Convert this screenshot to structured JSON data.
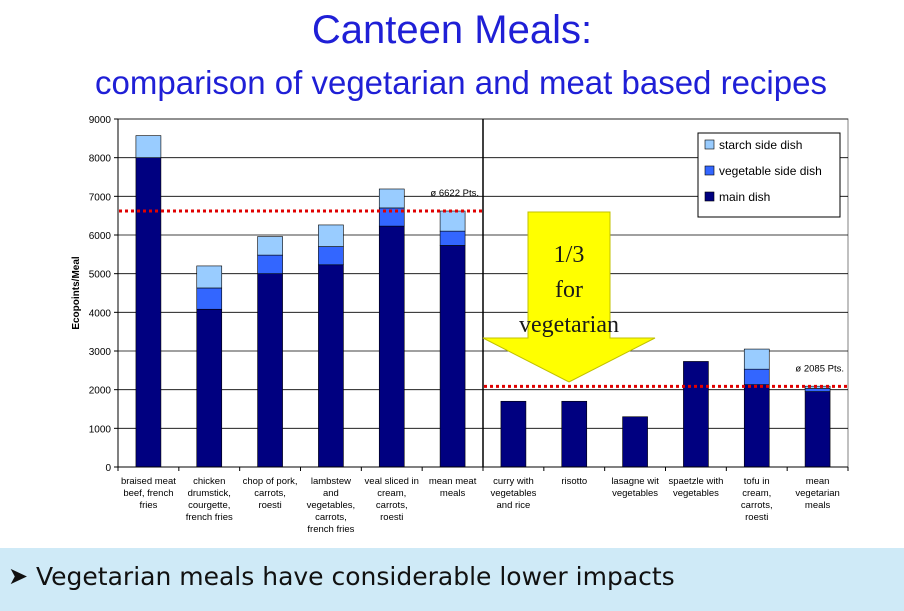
{
  "title_line1": "Canteen Meals:",
  "title_line2": "comparison of vegetarian and meat based recipes",
  "footer": {
    "bullet_icon": "arrow-bullet-icon",
    "text": "Vegetarian meals have considerable lower impacts"
  },
  "chart_data": {
    "type": "bar",
    "stacked": true,
    "ylabel": "Ecopoints/Meal",
    "ylim": [
      0,
      9000
    ],
    "yticks": [
      0,
      1000,
      2000,
      3000,
      4000,
      5000,
      6000,
      7000,
      8000,
      9000
    ],
    "grid": true,
    "legend_position": "top-right",
    "categories": [
      [
        "braised meat",
        "beef, french",
        "fries"
      ],
      [
        "chicken",
        "drumstick,",
        "courgette,",
        "french fries"
      ],
      [
        "chop of pork,",
        "carrots,",
        "roesti"
      ],
      [
        "lambstew",
        "and",
        "vegetables,",
        "carrots,",
        "french fries"
      ],
      [
        "veal sliced in",
        "cream,",
        "carrots,",
        "roesti"
      ],
      [
        "mean meat",
        "meals"
      ],
      [
        "curry with",
        "vegetables",
        "and rice"
      ],
      [
        "risotto"
      ],
      [
        "lasagne wit",
        "vegetables"
      ],
      [
        "spaetzle with",
        "vegetables"
      ],
      [
        "tofu in",
        "cream,",
        "carrots,",
        "roesti"
      ],
      [
        "mean",
        "vegetarian",
        "meals"
      ]
    ],
    "series": [
      {
        "name": "main dish",
        "color": "#000080",
        "values": [
          8000,
          4080,
          5000,
          5230,
          6230,
          5730,
          1700,
          1700,
          1300,
          2730,
          2130,
          1950
        ]
      },
      {
        "name": "vegetable side dish",
        "color": "#3366ff",
        "values": [
          0,
          550,
          480,
          470,
          470,
          370,
          0,
          0,
          0,
          0,
          400,
          80
        ]
      },
      {
        "name": "starch side dish",
        "color": "#99ccff",
        "values": [
          570,
          570,
          480,
          560,
          490,
          520,
          0,
          0,
          0,
          0,
          520,
          60
        ]
      }
    ],
    "legend_order": [
      "starch side dish",
      "vegetable side dish",
      "main dish"
    ],
    "reference_lines": [
      {
        "label": "ø 6622 Pts.",
        "value": 6622,
        "color": "#e00000",
        "categories_from": 0,
        "categories_to": 5
      },
      {
        "label": "ø 2085 Pts.",
        "value": 2085,
        "color": "#e00000",
        "categories_from": 6,
        "categories_to": 11
      }
    ],
    "annotation": {
      "lines": [
        "1/3",
        "for",
        "vegetarian"
      ],
      "color": "#ffff00",
      "outline": "#c0c000"
    }
  }
}
